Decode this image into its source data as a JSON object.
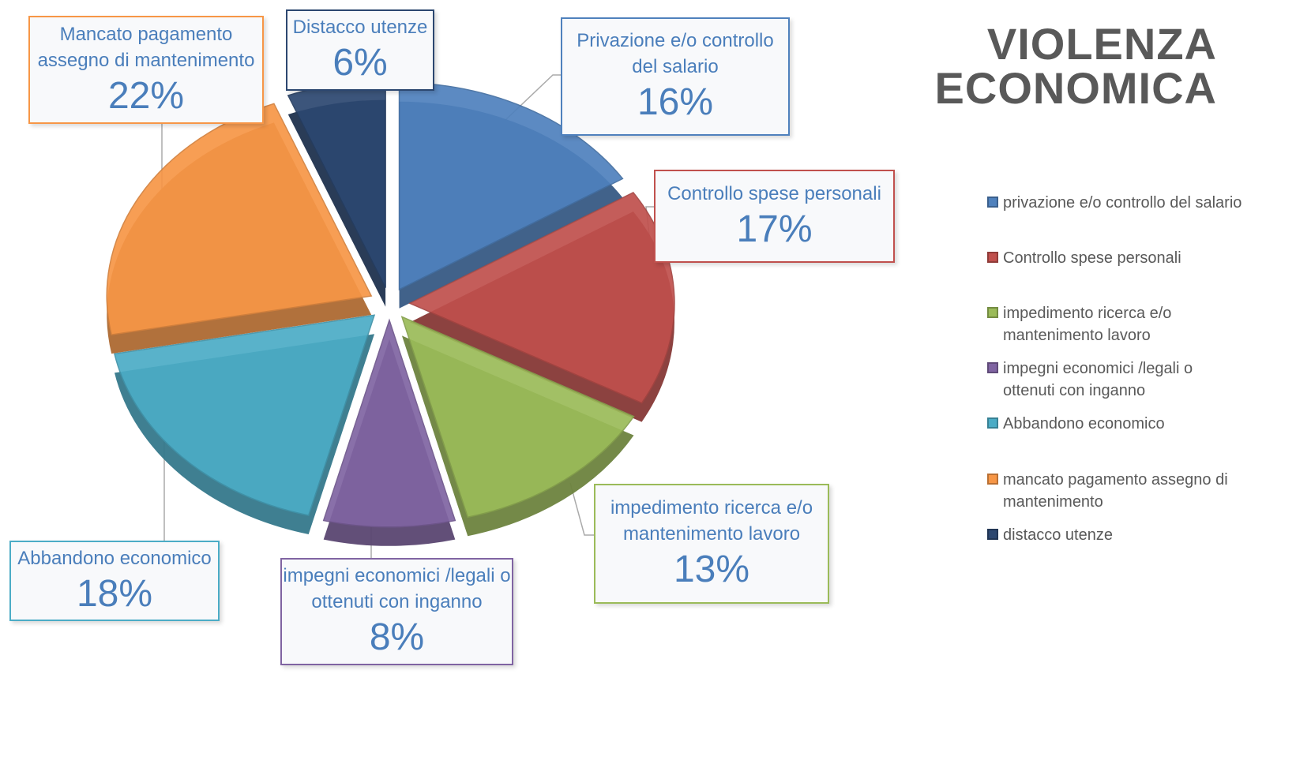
{
  "chart_data": {
    "type": "pie",
    "title": "VIOLENZA ECONOMICA",
    "categories": [
      "privazione e/o controllo del salario",
      "Controllo spese personali",
      "impedimento ricerca e/o mantenimento lavoro",
      "impegni economici /legali o ottenuti con inganno",
      "Abbandono economico",
      "mancato pagamento assegno di mantenimento",
      "distacco utenze"
    ],
    "data_label_names": [
      "Privazione e/o controllo del salario",
      "Controllo spese personali",
      "impedimento ricerca e/o mantenimento lavoro",
      "impegni economici /legali o ottenuti con inganno",
      "Abbandono economico",
      "Mancato pagamento assegno di mantenimento",
      "Distacco utenze"
    ],
    "values": [
      16,
      17,
      13,
      8,
      18,
      22,
      6
    ],
    "value_labels": [
      "16%",
      "17%",
      "13%",
      "8%",
      "18%",
      "22%",
      "6%"
    ],
    "colors": [
      "#4f81bd",
      "#c0504d",
      "#9bbb59",
      "#8064a2",
      "#4bacc6",
      "#f79646",
      "#2c4770"
    ],
    "legend": "right"
  }
}
